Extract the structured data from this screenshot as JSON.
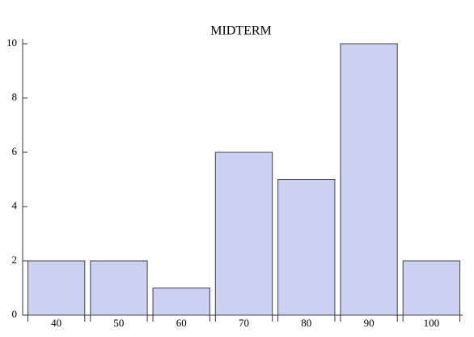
{
  "chart_data": {
    "type": "bar",
    "title": "MIDTERM",
    "categories": [
      "40",
      "50",
      "60",
      "70",
      "80",
      "90",
      "100"
    ],
    "values": [
      2,
      2,
      1,
      6,
      5,
      10,
      2
    ],
    "color": "#ccd0f3",
    "ylim": [
      0,
      10
    ],
    "yticks": [
      0,
      2,
      4,
      6,
      8,
      10
    ],
    "grid": false
  }
}
